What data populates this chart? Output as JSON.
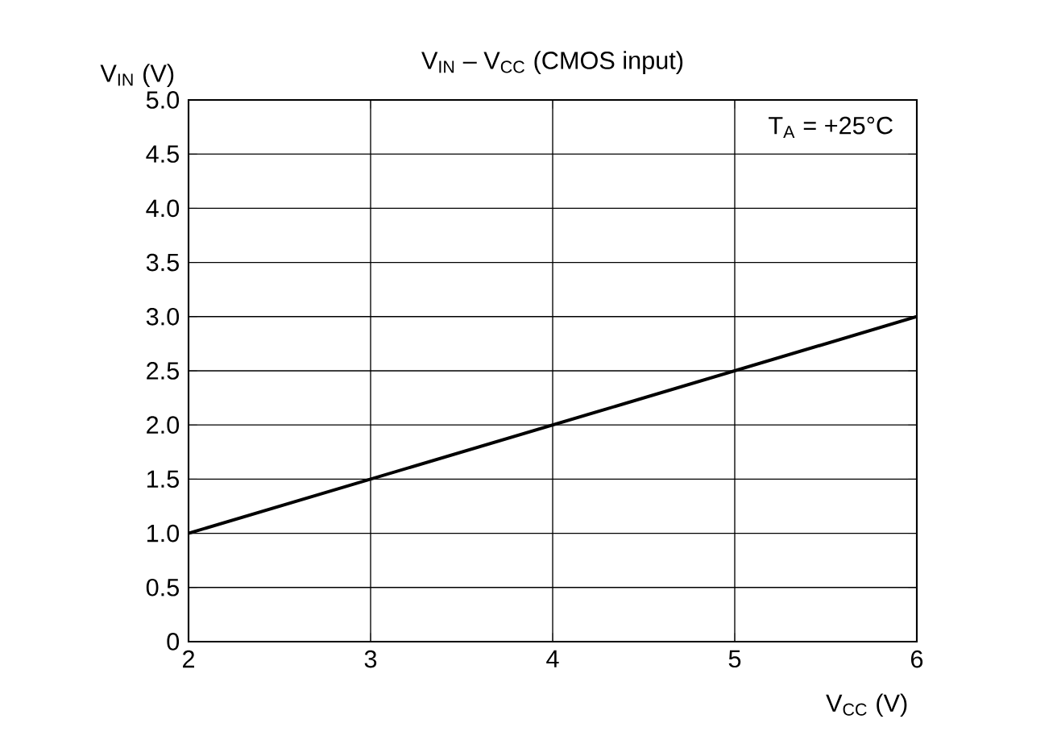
{
  "chart_data": {
    "type": "line",
    "title": "V$_{IN}$ – V$_{CC}$ (CMOS input)",
    "xlabel": "V$_{CC}$ (V)",
    "ylabel": "V$_{IN}$ (V)",
    "annotations": [
      "T$_{A}$ = +25°C"
    ],
    "x": [
      2,
      6
    ],
    "series": [
      {
        "color": "#000000",
        "values": [
          1.0,
          3.0
        ]
      }
    ],
    "xlim": [
      2,
      6
    ],
    "ylim": [
      0,
      5
    ],
    "xticks": [
      2,
      3,
      4,
      5,
      6
    ],
    "yticks": [
      0,
      {
        "value": 0.5,
        "label": "0.5"
      },
      {
        "value": 1,
        "label": "1.0"
      },
      {
        "value": 1.5,
        "label": "1.5"
      },
      {
        "value": 2,
        "label": "2.0"
      },
      {
        "value": 2.5,
        "label": "2.5"
      },
      {
        "value": 3,
        "label": "3.0"
      },
      {
        "value": 3.5,
        "label": "3.5"
      },
      {
        "value": 4,
        "label": "4.0"
      },
      {
        "value": 4.5,
        "label": "4.5"
      },
      {
        "value": 5,
        "label": "5.0"
      }
    ],
    "grid": true,
    "marker": "none",
    "line_style": "solid"
  }
}
